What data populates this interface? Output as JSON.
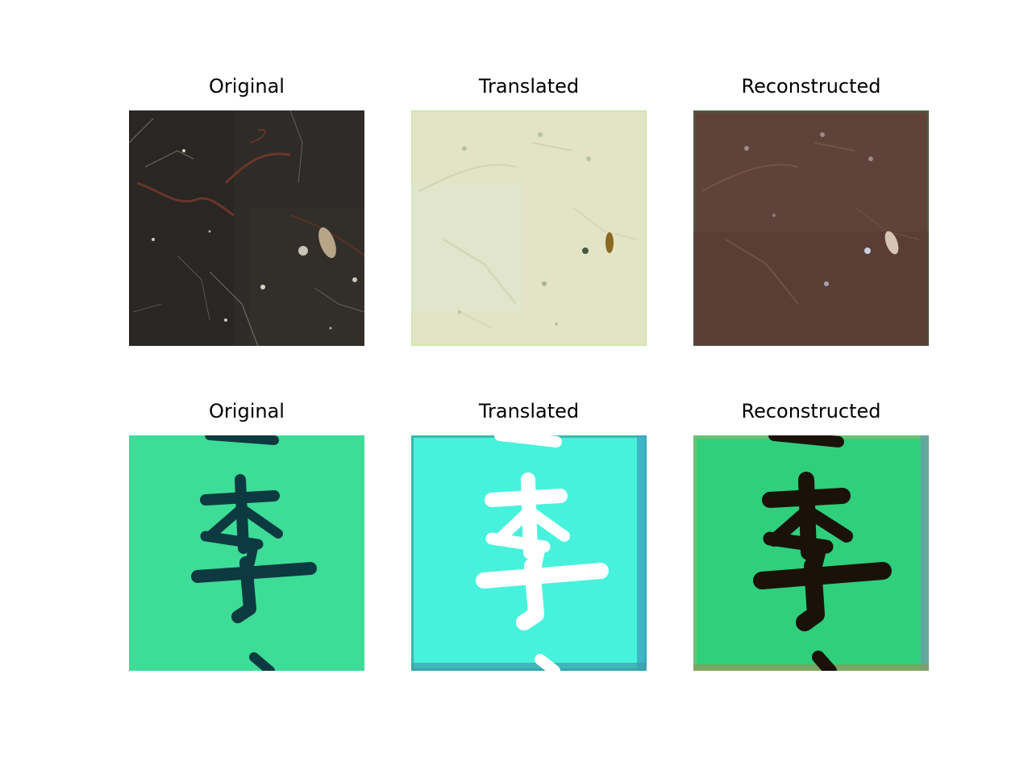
{
  "figure": {
    "rows": [
      {
        "panels": [
          {
            "title": "Original"
          },
          {
            "title": "Translated"
          },
          {
            "title": "Reconstructed"
          }
        ]
      },
      {
        "panels": [
          {
            "title": "Original"
          },
          {
            "title": "Translated"
          },
          {
            "title": "Reconstructed"
          }
        ]
      }
    ],
    "colors": {
      "stone_original": "#2e2b28",
      "stone_translated": "#e3e4c6",
      "stone_reconstructed": "#5f4239",
      "glyph_original_bg": "#3ddc97",
      "glyph_original_ink": "#0d3a40",
      "glyph_translated_bg": "#46f2dc",
      "glyph_translated_ink": "#ffffff",
      "glyph_reconstructed_bg": "#2fcf7c",
      "glyph_reconstructed_ink": "#1a1208"
    }
  }
}
